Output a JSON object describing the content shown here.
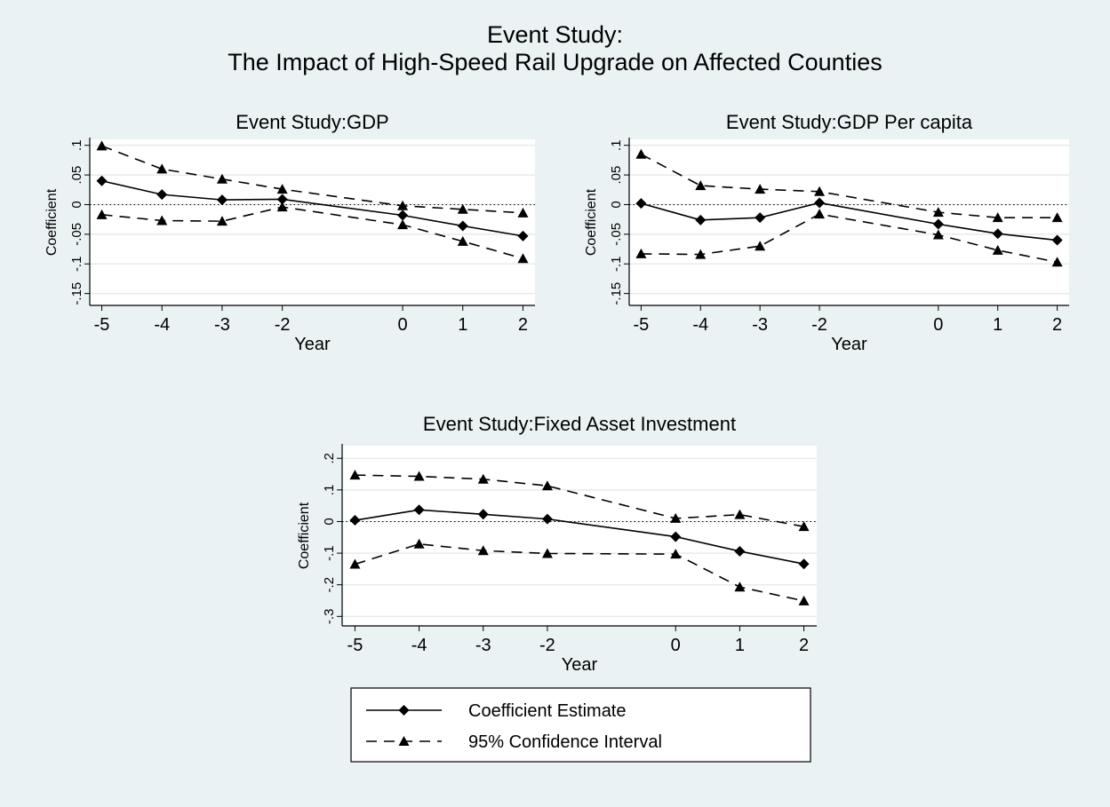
{
  "figure": {
    "title_line1": "Event Study:",
    "title_line2": "The Impact of High-Speed Rail Upgrade on Affected Counties",
    "background": "#eaf2f3"
  },
  "legend": {
    "items": [
      {
        "label": "Coefficient Estimate",
        "dash": "solid",
        "marker": "diamond"
      },
      {
        "label": "95% Confidence Interval",
        "dash": "dashed",
        "marker": "triangle"
      }
    ]
  },
  "chart_data": [
    {
      "type": "line",
      "title": "Event Study:GDP",
      "xlabel": "Year",
      "ylabel": "Coefficient",
      "x": [
        -5,
        -4,
        -3,
        -2,
        0,
        1,
        2
      ],
      "xticks": [
        "-5",
        "-4",
        "-3",
        "-2",
        "0",
        "1",
        "2"
      ],
      "yticks": [
        0.1,
        0.05,
        0,
        -0.05,
        -0.1,
        -0.15
      ],
      "ytick_labels": [
        ".1",
        ".05",
        "0",
        "-.05",
        "-.1",
        "-.15"
      ],
      "ylim": [
        -0.17,
        0.11
      ],
      "xlim": [
        -5.2,
        2.2
      ],
      "reference_line": 0,
      "grid": true,
      "series": [
        {
          "name": "Coefficient Estimate",
          "style": "solid",
          "marker": "diamond",
          "values": [
            0.04,
            0.017,
            0.008,
            0.009,
            -0.018,
            -0.036,
            -0.053
          ]
        },
        {
          "name": "95% Confidence Interval",
          "style": "dashed",
          "marker": "triangle",
          "values": [
            0.099,
            0.06,
            0.043,
            0.026,
            -0.002,
            -0.008,
            -0.014
          ]
        },
        {
          "name": "95% Confidence Interval",
          "style": "dashed",
          "marker": "triangle",
          "values": [
            -0.017,
            -0.027,
            -0.028,
            -0.004,
            -0.034,
            -0.062,
            -0.091
          ]
        }
      ]
    },
    {
      "type": "line",
      "title": "Event Study:GDP Per capita",
      "xlabel": "Year",
      "ylabel": "Coefficient",
      "x": [
        -5,
        -4,
        -3,
        -2,
        0,
        1,
        2
      ],
      "xticks": [
        "-5",
        "-4",
        "-3",
        "-2",
        "0",
        "1",
        "2"
      ],
      "yticks": [
        0.1,
        0.05,
        0,
        -0.05,
        -0.1,
        -0.15
      ],
      "ytick_labels": [
        ".1",
        ".05",
        "0",
        "-.05",
        "-.1",
        "-.15"
      ],
      "ylim": [
        -0.17,
        0.11
      ],
      "xlim": [
        -5.2,
        2.2
      ],
      "reference_line": 0,
      "grid": true,
      "series": [
        {
          "name": "Coefficient Estimate",
          "style": "solid",
          "marker": "diamond",
          "values": [
            0.002,
            -0.026,
            -0.022,
            0.003,
            -0.033,
            -0.049,
            -0.06
          ]
        },
        {
          "name": "95% Confidence Interval",
          "style": "dashed",
          "marker": "triangle",
          "values": [
            0.085,
            0.032,
            0.026,
            0.022,
            -0.013,
            -0.022,
            -0.022
          ]
        },
        {
          "name": "95% Confidence Interval",
          "style": "dashed",
          "marker": "triangle",
          "values": [
            -0.083,
            -0.084,
            -0.07,
            -0.016,
            -0.051,
            -0.077,
            -0.097
          ]
        }
      ]
    },
    {
      "type": "line",
      "title": "Event Study:Fixed Asset Investment",
      "xlabel": "Year",
      "ylabel": "Coefficient",
      "x": [
        -5,
        -4,
        -3,
        -2,
        0,
        1,
        2
      ],
      "xticks": [
        "-5",
        "-4",
        "-3",
        "-2",
        "0",
        "1",
        "2"
      ],
      "yticks": [
        0.2,
        0.1,
        0,
        -0.1,
        -0.2,
        -0.3
      ],
      "ytick_labels": [
        ".2",
        ".1",
        "0",
        "-.1",
        "-.2",
        "-.3"
      ],
      "ylim": [
        -0.33,
        0.24
      ],
      "xlim": [
        -5.2,
        2.2
      ],
      "reference_line": 0,
      "grid": true,
      "series": [
        {
          "name": "Coefficient Estimate",
          "style": "solid",
          "marker": "diamond",
          "values": [
            0.004,
            0.037,
            0.023,
            0.008,
            -0.048,
            -0.094,
            -0.134
          ]
        },
        {
          "name": "95% Confidence Interval",
          "style": "dashed",
          "marker": "triangle",
          "values": [
            0.147,
            0.143,
            0.134,
            0.113,
            0.01,
            0.022,
            -0.016
          ]
        },
        {
          "name": "95% Confidence Interval",
          "style": "dashed",
          "marker": "triangle",
          "values": [
            -0.135,
            -0.071,
            -0.092,
            -0.101,
            -0.103,
            -0.207,
            -0.251
          ]
        }
      ]
    }
  ]
}
